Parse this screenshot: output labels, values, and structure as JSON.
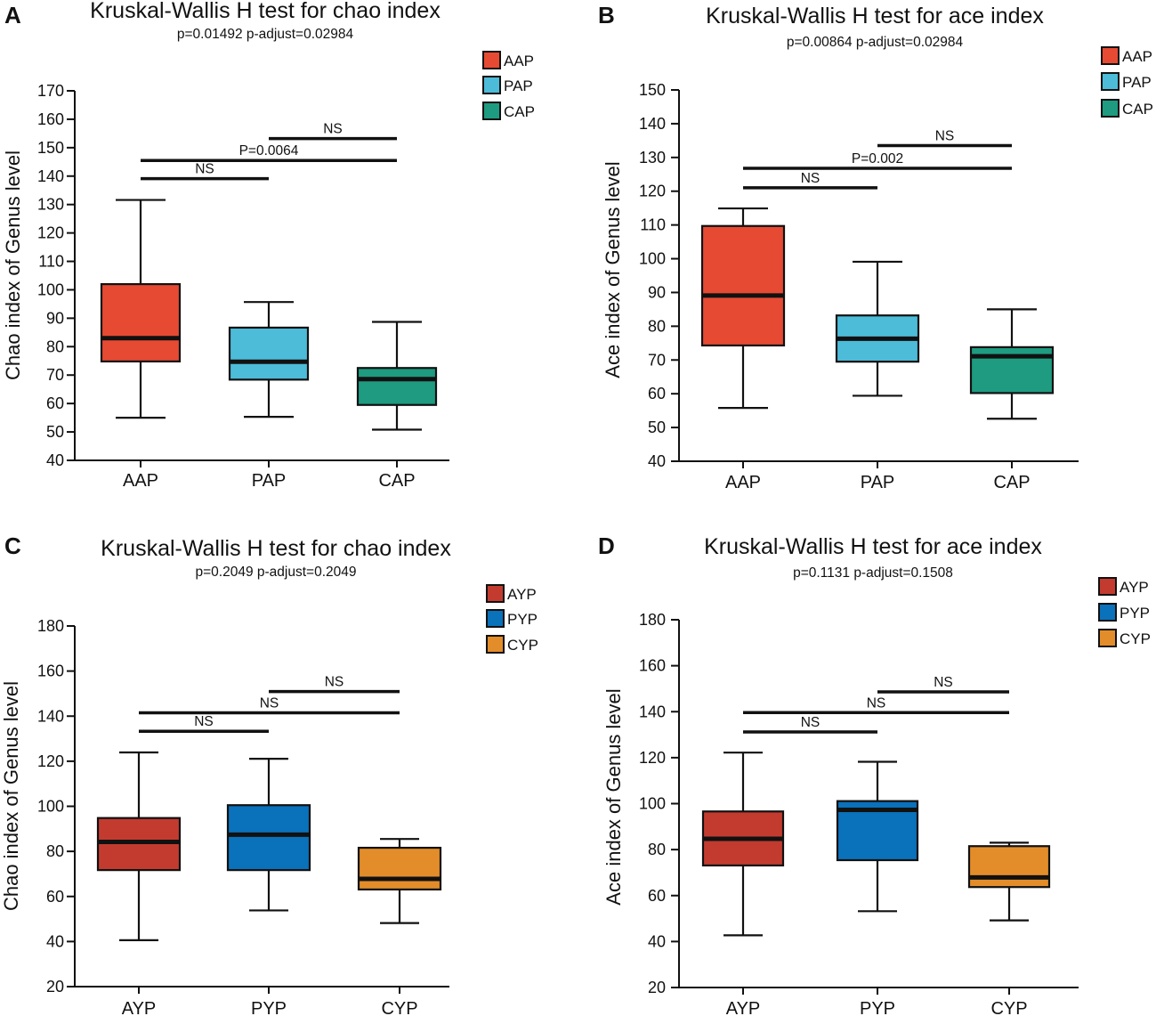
{
  "chart_data": [
    {
      "panel": "A",
      "type": "box",
      "title": "Kruskal-Wallis H test for chao index",
      "subtitle": "p=0.01492  p-adjust=0.02984",
      "ylabel": "Chao index of Genus level",
      "ylim": [
        40,
        170
      ],
      "yticks": [
        40,
        50,
        60,
        70,
        80,
        90,
        100,
        110,
        120,
        130,
        140,
        150,
        160,
        170
      ],
      "categories": [
        "AAP",
        "PAP",
        "CAP"
      ],
      "colors": [
        "#e64a33",
        "#4cbcd8",
        "#1e9b80"
      ],
      "legend": [
        "AAP",
        "PAP",
        "CAP"
      ],
      "boxes": [
        {
          "min": 55,
          "q1": 74.8,
          "median": 83,
          "q3": 102,
          "max": 131.6
        },
        {
          "min": 55.3,
          "q1": 68.4,
          "median": 74.7,
          "q3": 86.7,
          "max": 95.7
        },
        {
          "min": 50.8,
          "q1": 59.5,
          "median": 68.6,
          "q3": 72.5,
          "max": 88.7
        }
      ],
      "comparisons": [
        {
          "from": 0,
          "to": 1,
          "level": 139.1,
          "label": "NS"
        },
        {
          "from": 0,
          "to": 2,
          "level": 145.5,
          "label": "P=0.0064"
        },
        {
          "from": 1,
          "to": 2,
          "level": 153.2,
          "label": "NS"
        }
      ]
    },
    {
      "panel": "B",
      "type": "box",
      "title": "Kruskal-Wallis H test for ace index",
      "subtitle": "p=0.00864  p-adjust=0.02984",
      "ylabel": "Ace index of Genus level",
      "ylim": [
        40,
        150
      ],
      "yticks": [
        40,
        50,
        60,
        70,
        80,
        90,
        100,
        110,
        120,
        130,
        140,
        150
      ],
      "categories": [
        "AAP",
        "PAP",
        "CAP"
      ],
      "colors": [
        "#e64a33",
        "#4cbcd8",
        "#1e9b80"
      ],
      "legend": [
        "AAP",
        "PAP",
        "CAP"
      ],
      "boxes": [
        {
          "min": 55.8,
          "q1": 74.3,
          "median": 89.1,
          "q3": 109.7,
          "max": 114.9
        },
        {
          "min": 59.4,
          "q1": 69.5,
          "median": 76.3,
          "q3": 83.2,
          "max": 99.1
        },
        {
          "min": 52.6,
          "q1": 60.2,
          "median": 71.1,
          "q3": 73.8,
          "max": 85
        }
      ],
      "comparisons": [
        {
          "from": 0,
          "to": 1,
          "level": 121,
          "label": "NS"
        },
        {
          "from": 0,
          "to": 2,
          "level": 126.8,
          "label": "P=0.002"
        },
        {
          "from": 1,
          "to": 2,
          "level": 133.5,
          "label": "NS"
        }
      ]
    },
    {
      "panel": "C",
      "type": "box",
      "title": "Kruskal-Wallis H test for chao index",
      "subtitle": "p=0.2049  p-adjust=0.2049",
      "ylabel": "Chao index of Genus level",
      "ylim": [
        20,
        180
      ],
      "yticks": [
        20,
        40,
        60,
        80,
        100,
        120,
        140,
        160,
        180
      ],
      "categories": [
        "AYP",
        "PYP",
        "CYP"
      ],
      "colors": [
        "#c33b2f",
        "#0a71bb",
        "#e38d2a"
      ],
      "legend": [
        "AYP",
        "PYP",
        "CYP"
      ],
      "boxes": [
        {
          "min": 40.6,
          "q1": 71.7,
          "median": 84.2,
          "q3": 94.8,
          "max": 123.9
        },
        {
          "min": 53.8,
          "q1": 71.7,
          "median": 87.4,
          "q3": 100.5,
          "max": 121.1
        },
        {
          "min": 48.2,
          "q1": 63.1,
          "median": 67.8,
          "q3": 81.6,
          "max": 85.5
        }
      ],
      "comparisons": [
        {
          "from": 0,
          "to": 1,
          "level": 133.3,
          "label": "NS"
        },
        {
          "from": 0,
          "to": 2,
          "level": 141.5,
          "label": "NS"
        },
        {
          "from": 1,
          "to": 2,
          "level": 150.9,
          "label": "NS"
        }
      ]
    },
    {
      "panel": "D",
      "type": "box",
      "title": "Kruskal-Wallis H test for ace index",
      "subtitle": "p=0.1131  p-adjust=0.1508",
      "ylabel": "Ace index of Genus level",
      "ylim": [
        20,
        180
      ],
      "yticks": [
        20,
        40,
        60,
        80,
        100,
        120,
        140,
        160,
        180
      ],
      "categories": [
        "AYP",
        "PYP",
        "CYP"
      ],
      "colors": [
        "#c33b2f",
        "#0a71bb",
        "#e38d2a"
      ],
      "legend": [
        "AYP",
        "PYP",
        "CYP"
      ],
      "boxes": [
        {
          "min": 42.7,
          "q1": 73.1,
          "median": 84.7,
          "q3": 96.6,
          "max": 122.2
        },
        {
          "min": 53.2,
          "q1": 75.4,
          "median": 97.3,
          "q3": 101.1,
          "max": 118.2
        },
        {
          "min": 49.2,
          "q1": 63.7,
          "median": 67.9,
          "q3": 81.5,
          "max": 83
        }
      ],
      "comparisons": [
        {
          "from": 0,
          "to": 1,
          "level": 131.2,
          "label": "NS"
        },
        {
          "from": 0,
          "to": 2,
          "level": 139.6,
          "label": "NS"
        },
        {
          "from": 1,
          "to": 2,
          "level": 148.6,
          "label": "NS"
        }
      ]
    }
  ]
}
